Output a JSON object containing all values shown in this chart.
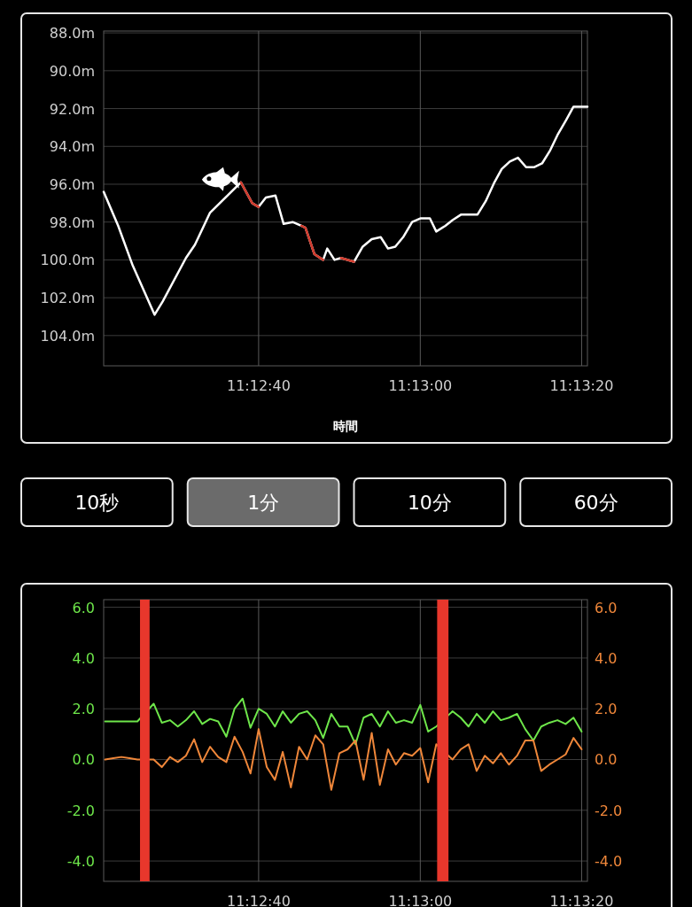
{
  "chart_data": [
    {
      "type": "line",
      "xlabel": "時間",
      "xlim": [
        11.20578,
        11.22242
      ],
      "ylim": [
        105.6,
        87.9
      ],
      "grid": true,
      "xticks": [
        {
          "value": 11.21111,
          "label": "11:12:40"
        },
        {
          "value": 11.21667,
          "label": "11:13:00"
        },
        {
          "value": 11.22222,
          "label": "11:13:20"
        }
      ],
      "yticks": [
        {
          "value": 88,
          "label": "88.0m"
        },
        {
          "value": 90,
          "label": "90.0m"
        },
        {
          "value": 92,
          "label": "92.0m"
        },
        {
          "value": 94,
          "label": "94.0m"
        },
        {
          "value": 96,
          "label": "96.0m"
        },
        {
          "value": 98,
          "label": "98.0m"
        },
        {
          "value": 100,
          "label": "100.0m"
        },
        {
          "value": 102,
          "label": "102.0m"
        },
        {
          "value": 104,
          "label": "104.0m"
        }
      ],
      "x": [
        11.20578,
        11.20628,
        11.20678,
        11.20753,
        11.20781,
        11.20861,
        11.20892,
        11.20944,
        11.2105,
        11.21089,
        11.21111,
        11.21136,
        11.21169,
        11.21197,
        11.21228,
        11.21258,
        11.21272,
        11.21303,
        11.21333,
        11.21347,
        11.21372,
        11.21394,
        11.21439,
        11.21469,
        11.215,
        11.21531,
        11.21556,
        11.21581,
        11.21608,
        11.21639,
        11.21669,
        11.217,
        11.21722,
        11.21753,
        11.21778,
        11.21808,
        11.21864,
        11.21892,
        11.21922,
        11.21947,
        11.21975,
        11.22003,
        11.22031,
        11.22058,
        11.22086,
        11.22114,
        11.22139,
        11.22169,
        11.22194,
        11.22242
      ],
      "series": [
        {
          "color": "#ffffff",
          "values": [
            96.4,
            98.2,
            100.3,
            102.9,
            102.2,
            99.9,
            99.2,
            97.5,
            95.9,
            97.0,
            97.2,
            96.7,
            96.6,
            98.1,
            98.0,
            98.2,
            98.3,
            99.7,
            100.0,
            99.4,
            100.0,
            99.9,
            100.1,
            99.3,
            98.9,
            98.8,
            99.4,
            99.3,
            98.8,
            98.0,
            97.8,
            97.8,
            98.5,
            98.2,
            97.9,
            97.6,
            97.6,
            96.9,
            95.9,
            95.2,
            94.8,
            94.6,
            95.1,
            95.1,
            94.9,
            94.2,
            93.4,
            92.6,
            91.9,
            91.9
          ]
        },
        {
          "color": "#d0392b",
          "values": [
            null,
            null,
            null,
            null,
            null,
            null,
            null,
            null,
            95.9,
            97.0,
            97.2,
            null,
            null,
            null,
            null,
            98.2,
            98.3,
            99.7,
            100.0,
            null,
            null,
            99.9,
            100.1,
            null,
            null,
            null,
            null,
            null,
            null,
            null,
            null,
            null,
            null,
            null,
            null,
            null,
            null,
            null,
            null,
            null,
            null,
            null,
            null,
            null,
            null,
            null,
            null,
            null,
            null,
            null
          ]
        }
      ]
    },
    {
      "type": "other",
      "annotations": [
        "10秒",
        "1分",
        "10分",
        "60分"
      ],
      "colors": [
        "#000000",
        "#6b6b6b",
        "#000000",
        "#000000"
      ]
    },
    {
      "type": "line",
      "xlim": [
        11.20578,
        11.22242
      ],
      "ylim": [
        -4.8,
        6.3
      ],
      "y2lim": [
        -4.8,
        6.3
      ],
      "grid": true,
      "xticks": [
        {
          "value": 11.21111,
          "label": "11:12:40"
        },
        {
          "value": 11.21667,
          "label": "11:13:00"
        },
        {
          "value": 11.22222,
          "label": "11:13:20"
        }
      ],
      "yticks": [
        {
          "value": -4,
          "label": "-4.0"
        },
        {
          "value": -2,
          "label": "-2.0"
        },
        {
          "value": 0,
          "label": "0.0"
        },
        {
          "value": 2,
          "label": "2.0"
        },
        {
          "value": 4,
          "label": "4.0"
        },
        {
          "value": 6,
          "label": "6.0"
        }
      ],
      "y2ticks": [
        {
          "value": -4,
          "label": "-4.0"
        },
        {
          "value": -2,
          "label": "-2.0"
        },
        {
          "value": 0,
          "label": "0.0"
        },
        {
          "value": 2,
          "label": "2.0"
        },
        {
          "value": 4,
          "label": "4.0"
        },
        {
          "value": 6,
          "label": "6.0"
        }
      ],
      "bands": [
        {
          "axis": "x",
          "from": 11.20703,
          "to": 11.20736,
          "color": "#e8372c"
        },
        {
          "axis": "x",
          "from": 11.21725,
          "to": 11.21764,
          "color": "#e8372c"
        }
      ],
      "x": [
        11.20583,
        11.20611,
        11.20639,
        11.20667,
        11.20694,
        11.2075,
        11.20778,
        11.20806,
        11.20833,
        11.20861,
        11.20889,
        11.20917,
        11.20944,
        11.20972,
        11.21,
        11.21028,
        11.21056,
        11.21083,
        11.21111,
        11.21139,
        11.21167,
        11.21194,
        11.21222,
        11.2125,
        11.21278,
        11.21306,
        11.21333,
        11.21361,
        11.21389,
        11.21417,
        11.21444,
        11.21472,
        11.215,
        11.21528,
        11.21556,
        11.21583,
        11.21611,
        11.21639,
        11.21667,
        11.21694,
        11.21722,
        11.21778,
        11.21806,
        11.21833,
        11.21861,
        11.21889,
        11.21917,
        11.21944,
        11.21972,
        11.22,
        11.22028,
        11.22056,
        11.22083,
        11.22111,
        11.22139,
        11.22167,
        11.22194,
        11.22222
      ],
      "series": [
        {
          "color": "#6ee64a",
          "values": [
            1.5,
            1.5,
            1.5,
            1.5,
            1.5,
            2.2,
            1.45,
            1.55,
            1.3,
            1.55,
            1.9,
            1.4,
            1.6,
            1.5,
            0.9,
            2.0,
            2.4,
            1.25,
            2.0,
            1.8,
            1.3,
            1.9,
            1.45,
            1.8,
            1.9,
            1.55,
            0.85,
            1.8,
            1.3,
            1.3,
            0.6,
            1.65,
            1.8,
            1.3,
            1.9,
            1.45,
            1.55,
            1.45,
            2.15,
            1.1,
            1.3,
            1.9,
            1.65,
            1.3,
            1.8,
            1.45,
            1.9,
            1.55,
            1.65,
            1.8,
            1.2,
            0.75,
            1.3,
            1.45,
            1.55,
            1.4,
            1.65,
            1.1
          ]
        },
        {
          "color": "#f0873a",
          "axis": "y2",
          "values": [
            0.0,
            0.05,
            0.1,
            0.05,
            0.0,
            0.0,
            -0.3,
            0.1,
            -0.1,
            0.15,
            0.8,
            -0.1,
            0.5,
            0.1,
            -0.1,
            0.9,
            0.3,
            -0.55,
            1.2,
            -0.3,
            -0.8,
            0.3,
            -1.1,
            0.5,
            0.0,
            0.95,
            0.6,
            -1.2,
            0.25,
            0.4,
            0.75,
            -0.8,
            1.05,
            -1.0,
            0.4,
            -0.2,
            0.25,
            0.15,
            0.45,
            -0.9,
            0.6,
            0.0,
            0.4,
            0.6,
            -0.45,
            0.15,
            -0.15,
            0.25,
            -0.2,
            0.15,
            0.75,
            0.75,
            -0.45,
            -0.2,
            0.0,
            0.2,
            0.85,
            0.4
          ]
        }
      ]
    }
  ]
}
